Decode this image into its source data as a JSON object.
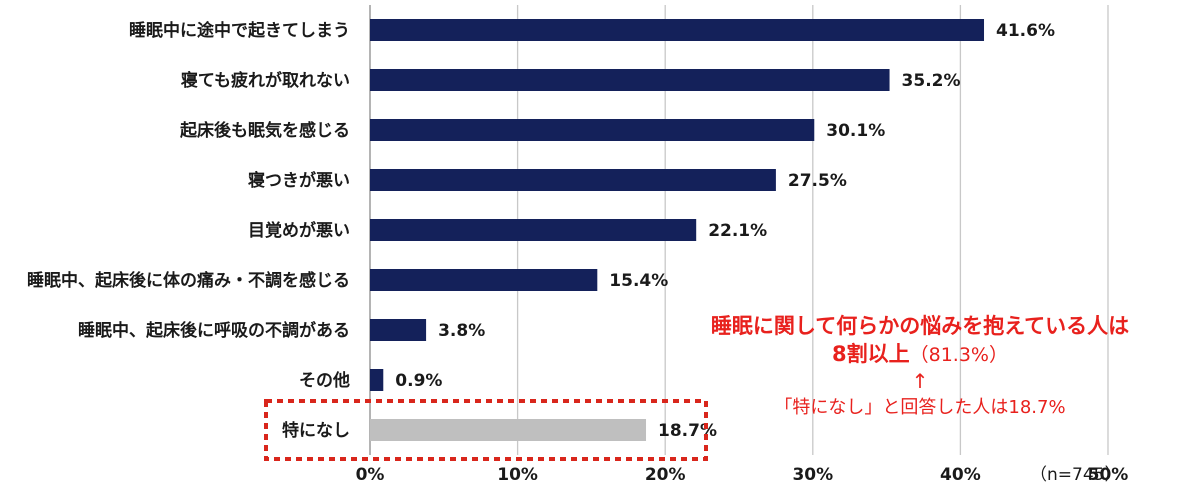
{
  "chart_data": {
    "type": "bar",
    "orientation": "horizontal",
    "categories": [
      "睡眠中に途中で起きてしまう",
      "寝ても疲れが取れない",
      "起床後も眠気を感じる",
      "寝つきが悪い",
      "目覚めが悪い",
      "睡眠中、起床後に体の痛み・不調を感じる",
      "睡眠中、起床後に呼吸の不調がある",
      "その他",
      "特になし"
    ],
    "values": [
      41.6,
      35.2,
      30.1,
      27.5,
      22.1,
      15.4,
      3.8,
      0.9,
      18.7
    ],
    "value_labels": [
      "41.6%",
      "35.2%",
      "30.1%",
      "27.5%",
      "22.1%",
      "15.4%",
      "3.8%",
      "0.9%",
      "18.7%"
    ],
    "xlim": [
      0,
      50
    ],
    "xticks": [
      "0%",
      "10%",
      "20%",
      "30%",
      "40%",
      "50%"
    ],
    "grid": true,
    "sample_note": "（n=745）",
    "colors": {
      "bar": "#14215a",
      "highlight_bar": "#bfbfbf",
      "grid": "#c8c8c8",
      "highlight_box": "#d9261c"
    },
    "highlight_index": 8
  },
  "callout": {
    "line1": "睡眠に関して何らかの悩みを抱えている人は",
    "line2_main": "8割以上",
    "line2_pct": "（81.3%）",
    "arrow": "↑",
    "line3": "「特になし」と回答した人は18.7%",
    "color": "#e8211d"
  }
}
